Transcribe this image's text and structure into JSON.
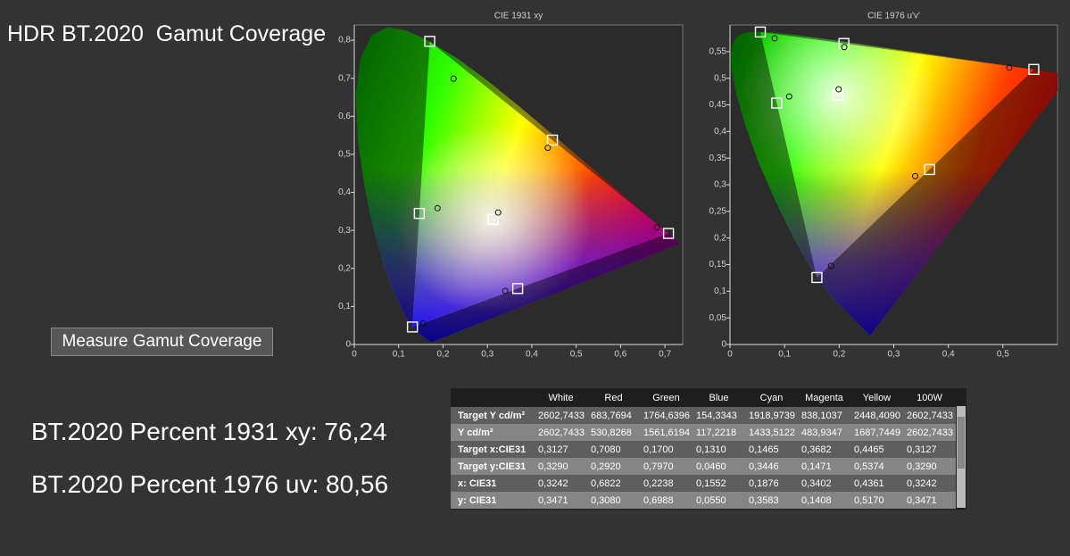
{
  "title": "HDR BT.2020  Gamut Coverage",
  "button": "Measure Gamut Coverage",
  "results": [
    "BT.2020 Percent 1931 xy: 76,24",
    "BT.2020 Percent 1976 uv: 80,56"
  ],
  "chart_data": [
    {
      "type": "scatter",
      "title": "CIE 1931 xy",
      "xlim": [
        0,
        0.74
      ],
      "ylim": [
        0,
        0.84
      ],
      "xticks": [
        0,
        {
          "value": 0.1,
          "label": "0,1"
        },
        {
          "value": 0.2,
          "label": "0,2"
        },
        {
          "value": 0.3,
          "label": "0,3"
        },
        {
          "value": 0.4,
          "label": "0,4"
        },
        {
          "value": 0.5,
          "label": "0,5"
        },
        {
          "value": 0.6,
          "label": "0,6"
        },
        {
          "value": 0.7,
          "label": "0,7"
        }
      ],
      "yticks": [
        0,
        {
          "value": 0.1,
          "label": "0,1"
        },
        {
          "value": 0.2,
          "label": "0,2"
        },
        {
          "value": 0.3,
          "label": "0,3"
        },
        {
          "value": 0.4,
          "label": "0,4"
        },
        {
          "value": 0.5,
          "label": "0,5"
        },
        {
          "value": 0.6,
          "label": "0,6"
        },
        {
          "value": 0.7,
          "label": "0,7"
        },
        {
          "value": 0.8,
          "label": "0,8"
        }
      ],
      "series": [
        {
          "marker": "square",
          "color": "#ffffff",
          "x": [
            0.3127,
            0.708,
            0.17,
            0.131,
            0.1465,
            0.3682,
            0.4465
          ],
          "y": [
            0.329,
            0.292,
            0.797,
            0.046,
            0.3446,
            0.1471,
            0.5374
          ]
        },
        {
          "marker": "circle",
          "color": "#111111",
          "x": [
            0.3242,
            0.6822,
            0.2238,
            0.1552,
            0.1876,
            0.3402,
            0.4361
          ],
          "y": [
            0.3471,
            0.308,
            0.6988,
            0.055,
            0.3583,
            0.1408,
            0.517
          ]
        }
      ]
    },
    {
      "type": "scatter",
      "title": "CIE 1976 u'v'",
      "xlim": [
        0,
        0.6
      ],
      "ylim": [
        0,
        0.6
      ],
      "xticks": [
        0,
        {
          "value": 0.1,
          "label": "0,1"
        },
        {
          "value": 0.2,
          "label": "0,2"
        },
        {
          "value": 0.3,
          "label": "0,3"
        },
        {
          "value": 0.4,
          "label": "0,4"
        },
        {
          "value": 0.5,
          "label": "0,5"
        }
      ],
      "yticks": [
        0,
        {
          "value": 0.05,
          "label": "0,05"
        },
        {
          "value": 0.1,
          "label": "0,1"
        },
        {
          "value": 0.15,
          "label": "0,15"
        },
        {
          "value": 0.2,
          "label": "0,2"
        },
        {
          "value": 0.25,
          "label": "0,25"
        },
        {
          "value": 0.3,
          "label": "0,3"
        },
        {
          "value": 0.35,
          "label": "0,35"
        },
        {
          "value": 0.4,
          "label": "0,4"
        },
        {
          "value": 0.45,
          "label": "0,45"
        },
        {
          "value": 0.5,
          "label": "0,5"
        },
        {
          "value": 0.55,
          "label": "0,55"
        }
      ],
      "series": [
        {
          "marker": "square",
          "color": "#ffffff",
          "x": [
            0.1978,
            0.5566,
            0.0556,
            0.1593,
            0.0856,
            0.3656,
            0.2087
          ],
          "y": [
            0.4683,
            0.5165,
            0.5868,
            0.1258,
            0.4533,
            0.3286,
            0.5653
          ]
        },
        {
          "marker": "circle",
          "color": "#111111",
          "x": [
            0.199,
            0.5118,
            0.0818,
            0.1853,
            0.1084,
            0.3394,
            0.2094
          ],
          "y": [
            0.4794,
            0.5199,
            0.575,
            0.1478,
            0.4657,
            0.3161,
            0.5585
          ]
        }
      ]
    }
  ],
  "table": {
    "columns": [
      "White",
      "Red",
      "Green",
      "Blue",
      "Cyan",
      "Magenta",
      "Yellow",
      "100W"
    ],
    "rows": [
      {
        "label": "Target Y cd/m²",
        "cells": [
          "2602,7433",
          "683,7694",
          "1764,6396",
          "154,3343",
          "1918,9739",
          "838,1037",
          "2448,4090",
          "2602,7433"
        ]
      },
      {
        "label": "Y cd/m²",
        "cells": [
          "2602,7433",
          "530,8268",
          "1561,6194",
          "117,2218",
          "1433,5122",
          "483,9347",
          "1687,7449",
          "2602,7433"
        ]
      },
      {
        "label": "Target x:CIE31",
        "cells": [
          "0,3127",
          "0,7080",
          "0,1700",
          "0,1310",
          "0,1465",
          "0,3682",
          "0,4465",
          "0,3127"
        ]
      },
      {
        "label": "Target y:CIE31",
        "cells": [
          "0,3290",
          "0,2920",
          "0,7970",
          "0,0460",
          "0,3446",
          "0,1471",
          "0,5374",
          "0,3290"
        ]
      },
      {
        "label": "x: CIE31",
        "cells": [
          "0,3242",
          "0,6822",
          "0,2238",
          "0,1552",
          "0,1876",
          "0,3402",
          "0,4361",
          "0,3242"
        ]
      },
      {
        "label": "y: CIE31",
        "cells": [
          "0,3471",
          "0,3080",
          "0,6988",
          "0,0550",
          "0,3583",
          "0,1408",
          "0,5170",
          "0,3471"
        ]
      }
    ]
  }
}
